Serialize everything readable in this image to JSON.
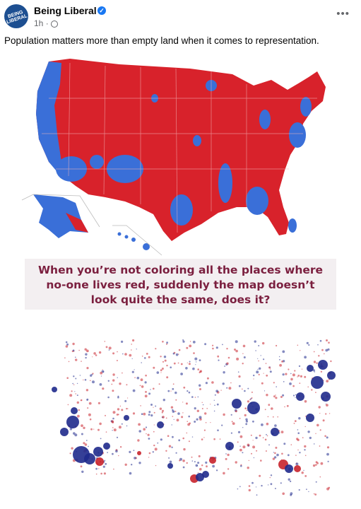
{
  "post": {
    "page_name": "Being Liberal",
    "avatar_text": "BEING LIBERAL",
    "verified_icon": "check-badge-icon",
    "time": "1h",
    "audience_icon": "globe-icon",
    "more_label": "•••",
    "caption": "Population matters more than empty land when it comes to representation."
  },
  "image": {
    "banner_lines": [
      "When you’re not coloring all the places where",
      "no-one lives red, suddenly the map doesn’t",
      "look quite the same, does it?"
    ],
    "colors": {
      "red": "#d8222b",
      "blue": "#3a6fd8",
      "banner_text": "#7b1f3f",
      "dot_red": "#c8232c",
      "dot_blue": "#1f2a8c"
    }
  }
}
